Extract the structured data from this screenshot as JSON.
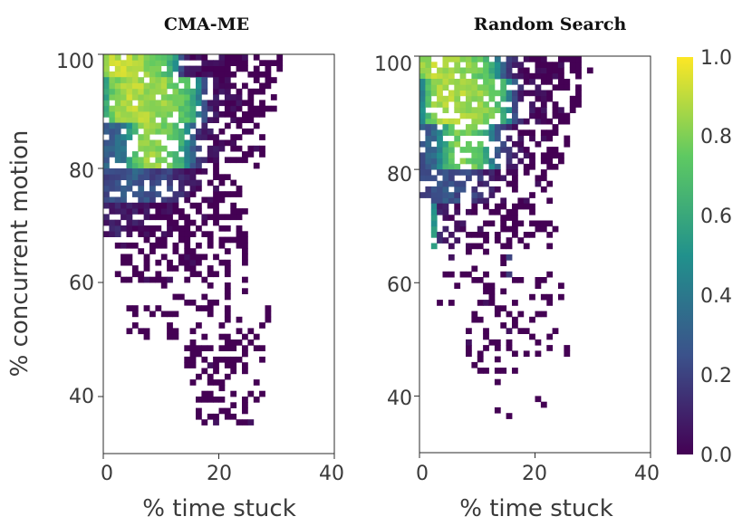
{
  "chart_data": [
    {
      "type": "heatmap",
      "title": "CMA-ME",
      "xlabel": "% time stuck",
      "ylabel": "% concurrent motion",
      "xlim": [
        0,
        40
      ],
      "ylim": [
        30,
        100
      ],
      "xticks": [
        "0",
        "20",
        "40"
      ],
      "yticks": [
        "40",
        "60",
        "80",
        "100"
      ],
      "cell_size": [
        1,
        1
      ],
      "bands": [
        {
          "y_range": [
            96,
            100
          ],
          "x_start": 0,
          "profile": [
            0.85,
            0.88,
            0.9,
            0.9,
            0.88,
            0.86,
            0.84,
            0.82,
            0.8,
            0.78,
            0.72,
            0.65,
            0.5,
            0.25,
            0.05,
            0.03,
            0.02,
            0.02,
            0.01,
            0.01,
            0.01,
            0.01,
            0.0,
            0.0,
            0.0,
            0.0,
            0.0,
            0.0,
            0.0,
            0.0,
            0.0
          ],
          "density": 0.95
        },
        {
          "y_range": [
            88,
            96
          ],
          "x_start": 0,
          "profile": [
            0.6,
            0.75,
            0.82,
            0.86,
            0.88,
            0.88,
            0.87,
            0.86,
            0.85,
            0.84,
            0.83,
            0.8,
            0.78,
            0.75,
            0.7,
            0.6,
            0.45,
            0.25,
            0.1,
            0.05,
            0.03,
            0.02,
            0.01,
            0.01,
            0.0,
            0.0,
            0.0,
            0.0,
            0.0,
            0.0
          ],
          "density": 0.9
        },
        {
          "y_range": [
            80,
            88
          ],
          "x_start": 0,
          "profile": [
            0.3,
            0.3,
            0.35,
            0.4,
            0.55,
            0.7,
            0.8,
            0.83,
            0.84,
            0.83,
            0.8,
            0.76,
            0.7,
            0.6,
            0.45,
            0.3,
            0.15,
            0.08,
            0.05,
            0.03,
            0.02,
            0.01,
            0.01,
            0.0,
            0.0,
            0.0,
            0.0,
            0.0
          ],
          "density": 0.85
        },
        {
          "y_range": [
            74,
            80
          ],
          "x_start": 0,
          "profile": [
            0.22,
            0.25,
            0.25,
            0.28,
            0.3,
            0.3,
            0.28,
            0.25,
            0.22,
            0.2,
            0.2,
            0.18,
            0.15,
            0.1,
            0.06,
            0.04,
            0.02,
            0.01,
            0.01,
            0.0,
            0.0,
            0.0,
            0.0,
            0.0
          ],
          "density": 0.8
        },
        {
          "y_range": [
            68,
            74
          ],
          "x_start": 0,
          "profile": [
            0.08,
            0.1,
            0.12,
            0.1,
            0.08,
            0.06,
            0.04,
            0.03,
            0.02,
            0.02,
            0.01,
            0.01,
            0.0,
            0.0,
            0.0,
            0.0,
            0.0,
            0.0,
            0.0,
            0.0,
            0.0,
            0.0,
            0.0,
            0.0,
            0.0
          ],
          "density": 0.75
        },
        {
          "y_range": [
            60,
            68
          ],
          "x_start": 2,
          "profile": [
            0.0,
            0.0,
            0.0,
            0.0,
            0.0,
            0.0,
            0.0,
            0.0,
            0.0,
            0.0,
            0.0,
            0.0,
            0.0,
            0.0,
            0.0,
            0.0,
            0.0,
            0.0,
            0.0,
            0.0,
            0.0,
            0.0,
            0.0
          ],
          "density": 0.5
        },
        {
          "y_range": [
            50,
            60
          ],
          "x_start": 4,
          "profile": [
            0.0,
            0.0,
            0.0,
            0.0,
            0.0,
            0.0,
            0.0,
            0.0,
            0.0,
            0.0,
            0.0,
            0.0,
            0.0,
            0.0,
            0.0,
            0.0,
            0.0,
            0.0,
            0.0,
            0.0,
            0.0,
            0.0,
            0.0,
            0.0,
            0.0
          ],
          "density": 0.35
        },
        {
          "y_range": [
            42,
            50
          ],
          "x_start": 14,
          "profile": [
            0.0,
            0.0,
            0.0,
            0.0,
            0.0,
            0.0,
            0.0,
            0.0,
            0.0,
            0.0,
            0.0,
            0.0,
            0.0,
            0.0,
            0.0
          ],
          "density": 0.45
        },
        {
          "y_range": [
            35,
            42
          ],
          "x_start": 16,
          "profile": [
            0.0,
            0.0,
            0.0,
            0.0,
            0.0,
            0.0,
            0.0,
            0.0,
            0.0,
            0.0,
            0.0,
            0.0
          ],
          "density": 0.3
        }
      ]
    },
    {
      "type": "heatmap",
      "title": "Random Search",
      "xlabel": "% time stuck",
      "ylabel": "",
      "xlim": [
        0,
        40
      ],
      "ylim": [
        30,
        100
      ],
      "xticks": [
        "0",
        "20",
        "40"
      ],
      "yticks": [
        "40",
        "60",
        "80",
        "100"
      ],
      "cell_size": [
        1,
        1
      ],
      "bands": [
        {
          "y_range": [
            96,
            100
          ],
          "x_start": 0,
          "profile": [
            0.82,
            0.86,
            0.88,
            0.88,
            0.87,
            0.86,
            0.84,
            0.82,
            0.8,
            0.78,
            0.75,
            0.7,
            0.6,
            0.45,
            0.3,
            0.2,
            0.1,
            0.05,
            0.03,
            0.02,
            0.01,
            0.01,
            0.0,
            0.0,
            0.0,
            0.0,
            0.0,
            0.0,
            0.0,
            0.0
          ],
          "density": 0.9
        },
        {
          "y_range": [
            88,
            96
          ],
          "x_start": 0,
          "profile": [
            0.45,
            0.7,
            0.82,
            0.86,
            0.88,
            0.88,
            0.87,
            0.86,
            0.85,
            0.84,
            0.82,
            0.8,
            0.78,
            0.72,
            0.62,
            0.45,
            0.25,
            0.1,
            0.05,
            0.03,
            0.02,
            0.01,
            0.0,
            0.0,
            0.0,
            0.0,
            0.0,
            0.0
          ],
          "density": 0.85
        },
        {
          "y_range": [
            80,
            88
          ],
          "x_start": 0,
          "profile": [
            0.25,
            0.3,
            0.35,
            0.45,
            0.6,
            0.72,
            0.78,
            0.8,
            0.8,
            0.76,
            0.7,
            0.6,
            0.45,
            0.3,
            0.2,
            0.12,
            0.06,
            0.03,
            0.02,
            0.01,
            0.01,
            0.0,
            0.0,
            0.0,
            0.0,
            0.0
          ],
          "density": 0.8
        },
        {
          "y_range": [
            74,
            80
          ],
          "x_start": 0,
          "profile": [
            0.2,
            0.22,
            0.25,
            0.28,
            0.28,
            0.26,
            0.24,
            0.22,
            0.2,
            0.18,
            0.15,
            0.12,
            0.08,
            0.05,
            0.03,
            0.02,
            0.01,
            0.0,
            0.0,
            0.0,
            0.0,
            0.0,
            0.0
          ],
          "density": 0.65
        },
        {
          "y_range": [
            66,
            74
          ],
          "x_start": 2,
          "profile": [
            0.5,
            0.1,
            0.08,
            0.05,
            0.03,
            0.02,
            0.01,
            0.0,
            0.0,
            0.0,
            0.0,
            0.0,
            0.0,
            0.0,
            0.0,
            0.0,
            0.0,
            0.0,
            0.0,
            0.0,
            0.0,
            0.0
          ],
          "density": 0.45
        },
        {
          "y_range": [
            56,
            66
          ],
          "x_start": 3,
          "profile": [
            0.0,
            0.0,
            0.0,
            0.0,
            0.0,
            0.0,
            0.0,
            0.0,
            0.0,
            0.0,
            0.0,
            0.0,
            0.2,
            0.0,
            0.0,
            0.0,
            0.0,
            0.0,
            0.0,
            0.0,
            0.0,
            0.0,
            0.0
          ],
          "density": 0.18
        },
        {
          "y_range": [
            44,
            56
          ],
          "x_start": 8,
          "profile": [
            0.0,
            0.0,
            0.0,
            0.0,
            0.0,
            0.0,
            0.0,
            0.0,
            0.0,
            0.0,
            0.0,
            0.0,
            0.0,
            0.0,
            0.0,
            0.0,
            0.0,
            0.0
          ],
          "density": 0.22
        },
        {
          "y_range": [
            36,
            44
          ],
          "x_start": 9,
          "profile": [
            0.0,
            0.0,
            0.0,
            0.0,
            0.0,
            0.0,
            0.0,
            0.0,
            0.0,
            0.0,
            0.0,
            0.0,
            0.0,
            0.0,
            0.0,
            0.0
          ],
          "density": 0.08
        }
      ]
    }
  ],
  "colorbar": {
    "label": "",
    "range": [
      0.0,
      1.0
    ],
    "ticks": [
      "0.0",
      "0.2",
      "0.4",
      "0.6",
      "0.8",
      "1.0"
    ],
    "colormap": [
      "#440154",
      "#3b528b",
      "#21918c",
      "#5ec962",
      "#fde725"
    ]
  }
}
